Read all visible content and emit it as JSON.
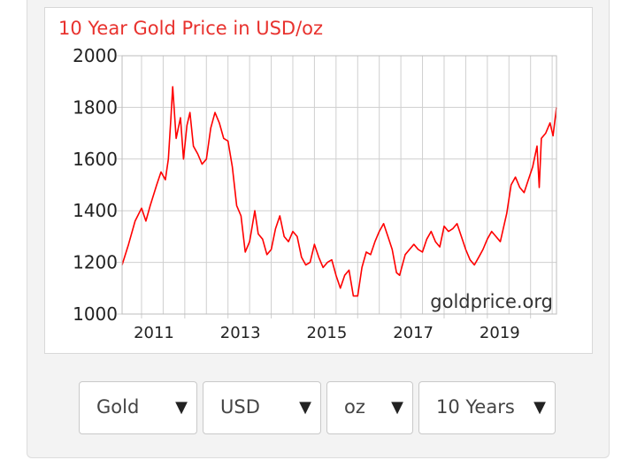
{
  "chart_data": {
    "type": "line",
    "title": "10 Year Gold Price in USD/oz",
    "watermark": "goldprice.org",
    "ylim": [
      1000,
      2000
    ],
    "yticks": [
      "1000",
      "1200",
      "1400",
      "1600",
      "1800",
      "2000"
    ],
    "xlim": [
      2010.55,
      2020.6
    ],
    "xticks": [
      "2011",
      "2013",
      "2015",
      "2017",
      "2019"
    ],
    "grid": true,
    "line_color": "#ff0000",
    "title_color": "#e8322e",
    "series": [
      {
        "x": [
          2010.55,
          2010.7,
          2010.85,
          2011.0,
          2011.1,
          2011.2,
          2011.35,
          2011.45,
          2011.55,
          2011.62,
          2011.68,
          2011.72,
          2011.8,
          2011.9,
          2011.97,
          2012.05,
          2012.12,
          2012.2,
          2012.3,
          2012.4,
          2012.5,
          2012.6,
          2012.7,
          2012.8,
          2012.9,
          2013.0,
          2013.1,
          2013.2,
          2013.3,
          2013.4,
          2013.5,
          2013.55,
          2013.62,
          2013.7,
          2013.8,
          2013.9,
          2014.0,
          2014.1,
          2014.2,
          2014.3,
          2014.4,
          2014.5,
          2014.6,
          2014.7,
          2014.8,
          2014.9,
          2015.0,
          2015.1,
          2015.2,
          2015.3,
          2015.4,
          2015.5,
          2015.6,
          2015.7,
          2015.8,
          2015.9,
          2016.0,
          2016.1,
          2016.2,
          2016.3,
          2016.4,
          2016.5,
          2016.6,
          2016.7,
          2016.8,
          2016.9,
          2016.97,
          2017.1,
          2017.2,
          2017.3,
          2017.4,
          2017.5,
          2017.6,
          2017.7,
          2017.8,
          2017.9,
          2018.0,
          2018.1,
          2018.2,
          2018.3,
          2018.4,
          2018.5,
          2018.6,
          2018.7,
          2018.8,
          2018.9,
          2019.0,
          2019.1,
          2019.2,
          2019.3,
          2019.45,
          2019.55,
          2019.65,
          2019.75,
          2019.85,
          2019.95,
          2020.05,
          2020.15,
          2020.2,
          2020.25,
          2020.35,
          2020.45,
          2020.52,
          2020.6
        ],
        "y": [
          1190,
          1270,
          1360,
          1410,
          1360,
          1420,
          1500,
          1550,
          1520,
          1600,
          1760,
          1880,
          1680,
          1760,
          1600,
          1730,
          1780,
          1650,
          1620,
          1580,
          1600,
          1720,
          1780,
          1740,
          1680,
          1670,
          1570,
          1420,
          1380,
          1240,
          1280,
          1330,
          1400,
          1310,
          1290,
          1230,
          1250,
          1330,
          1380,
          1300,
          1280,
          1320,
          1300,
          1220,
          1190,
          1200,
          1270,
          1220,
          1180,
          1200,
          1210,
          1150,
          1100,
          1150,
          1170,
          1070,
          1070,
          1180,
          1240,
          1230,
          1280,
          1320,
          1350,
          1300,
          1250,
          1160,
          1150,
          1230,
          1250,
          1270,
          1250,
          1240,
          1290,
          1320,
          1280,
          1260,
          1340,
          1320,
          1330,
          1350,
          1300,
          1250,
          1210,
          1190,
          1220,
          1250,
          1290,
          1320,
          1300,
          1280,
          1390,
          1500,
          1530,
          1490,
          1470,
          1520,
          1570,
          1650,
          1490,
          1680,
          1700,
          1740,
          1690,
          1800
        ]
      }
    ]
  },
  "controls": {
    "metal": "Gold",
    "currency": "USD",
    "unit": "oz",
    "period": "10 Years",
    "arrow": "▼"
  }
}
